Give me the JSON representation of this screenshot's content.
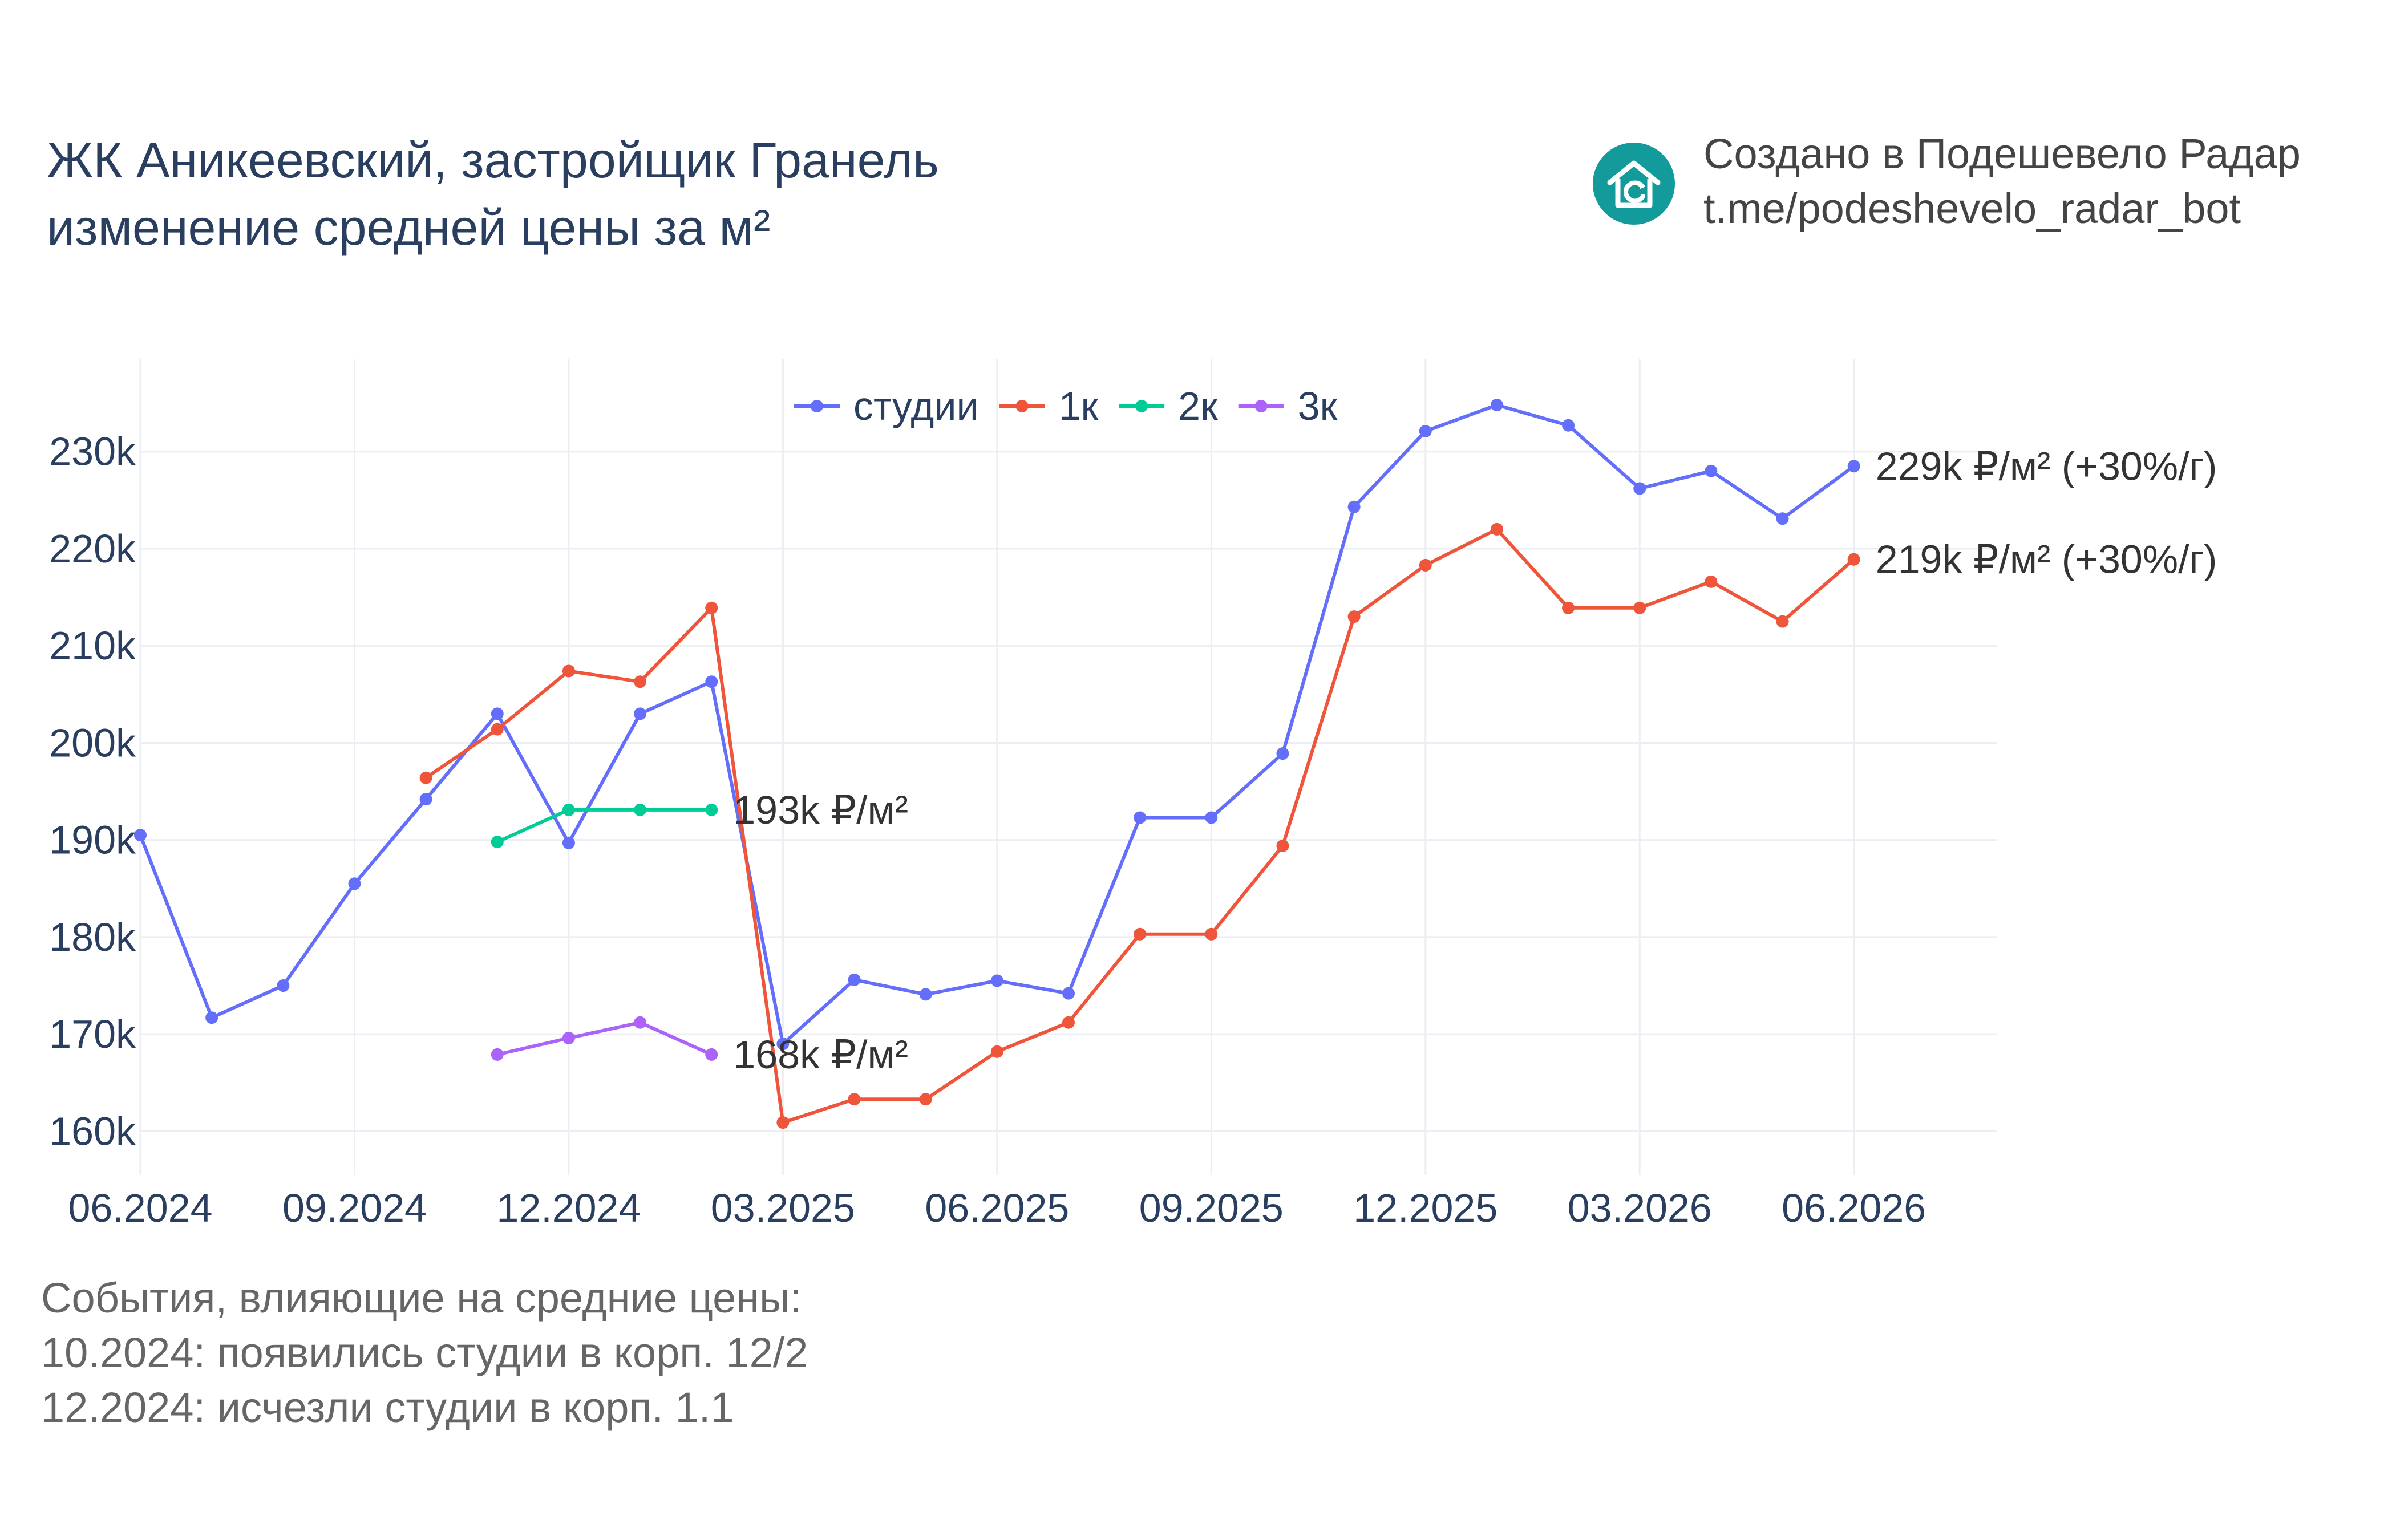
{
  "header": {
    "title_line1": "ЖК Аникеевский, застройщик Гранель",
    "title_line2": "изменение средней цены за м²"
  },
  "brand": {
    "logo_icon": "house-icon",
    "line1": "Создано в Подешевело Радар",
    "line2": "t.me/podeshevelo_radar_bot",
    "color": "#139b9b"
  },
  "events": {
    "heading": "События, влияющие на средние цены:",
    "items": [
      "10.2024: появились студии в корп. 12/2",
      "12.2024: исчезли студии в корп. 1.1"
    ]
  },
  "chart_data": {
    "type": "line",
    "x": [
      "2024-06",
      "2024-07",
      "2024-08",
      "2024-09",
      "2024-10",
      "2024-11",
      "2024-12",
      "2025-01",
      "2025-02",
      "2025-03",
      "2025-04",
      "2025-05",
      "2025-06",
      "2025-07",
      "2025-08",
      "2025-09",
      "2025-10",
      "2025-11",
      "2025-12",
      "2026-01",
      "2026-02",
      "2026-03",
      "2026-04",
      "2026-05",
      "2026-06"
    ],
    "x_ticks": [
      {
        "x": "2024-06",
        "label": "06.2024"
      },
      {
        "x": "2024-09",
        "label": "09.2024"
      },
      {
        "x": "2024-12",
        "label": "12.2024"
      },
      {
        "x": "2025-03",
        "label": "03.2025"
      },
      {
        "x": "2025-06",
        "label": "06.2025"
      },
      {
        "x": "2025-09",
        "label": "09.2025"
      },
      {
        "x": "2025-12",
        "label": "12.2025"
      },
      {
        "x": "2026-03",
        "label": "03.2026"
      },
      {
        "x": "2026-06",
        "label": "06.2026"
      }
    ],
    "y_ticks": [
      {
        "value": 160000,
        "label": "160k"
      },
      {
        "value": 170000,
        "label": "170k"
      },
      {
        "value": 180000,
        "label": "180k"
      },
      {
        "value": 190000,
        "label": "190k"
      },
      {
        "value": 200000,
        "label": "200k"
      },
      {
        "value": 210000,
        "label": "210k"
      },
      {
        "value": 220000,
        "label": "220k"
      },
      {
        "value": 230000,
        "label": "230k"
      }
    ],
    "ylim": [
      155500,
      239500
    ],
    "xlim": [
      "2024-06",
      "2026-08"
    ],
    "grid": true,
    "legend_position": "top-center",
    "series": [
      {
        "name": "студии",
        "color": "#636efa",
        "values": [
          190500,
          171700,
          175000,
          185500,
          194200,
          203000,
          189700,
          203000,
          206300,
          169000,
          175600,
          174100,
          175500,
          174200,
          192300,
          192300,
          198900,
          224300,
          232100,
          234800,
          232700,
          226200,
          228000,
          223100,
          228500
        ]
      },
      {
        "name": "1к",
        "color": "#ef553b",
        "values": [
          null,
          null,
          null,
          null,
          196400,
          201400,
          207400,
          206300,
          213900,
          160900,
          163300,
          163300,
          168200,
          171200,
          180300,
          180300,
          189400,
          213000,
          218300,
          222000,
          213900,
          213900,
          216600,
          212500,
          218900
        ]
      },
      {
        "name": "2к",
        "color": "#00cc96",
        "values": [
          null,
          null,
          null,
          null,
          null,
          189800,
          193100,
          193100,
          193100,
          null,
          null,
          null,
          null,
          null,
          null,
          null,
          null,
          null,
          null,
          null,
          null,
          null,
          null,
          null,
          null
        ]
      },
      {
        "name": "3к",
        "color": "#ab63fa",
        "values": [
          null,
          null,
          null,
          null,
          null,
          167900,
          169600,
          171200,
          167900,
          null,
          null,
          null,
          null,
          null,
          null,
          null,
          null,
          null,
          null,
          null,
          null,
          null,
          null,
          null,
          null
        ]
      }
    ],
    "annotations": [
      {
        "x": "2026-06",
        "y": 228500,
        "text": "229k ₽/м² (+30%/г)"
      },
      {
        "x": "2026-06",
        "y": 218900,
        "text": "219k ₽/м² (+30%/г)"
      },
      {
        "x": "2025-02",
        "y": 193100,
        "text": "193k ₽/м²"
      },
      {
        "x": "2025-02",
        "y": 167900,
        "text": "168k ₽/м²"
      }
    ]
  }
}
